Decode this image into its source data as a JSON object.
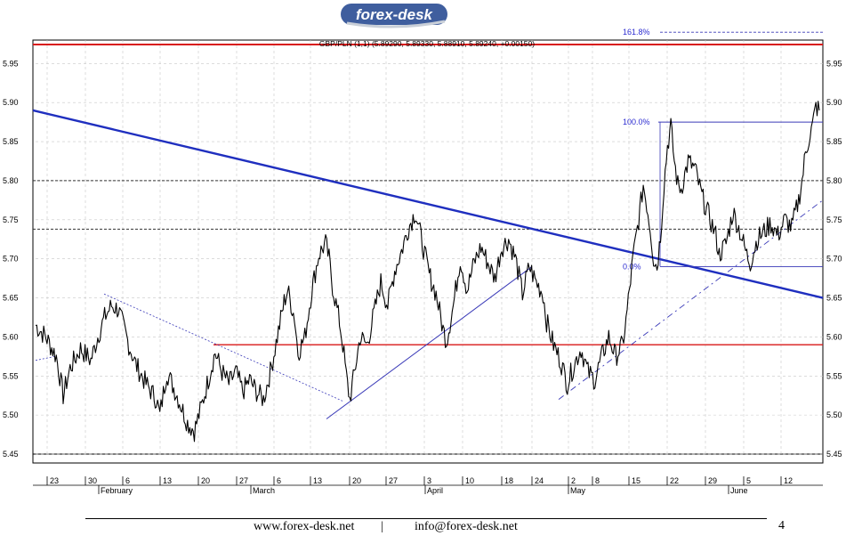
{
  "logo": {
    "text": "forex-desk"
  },
  "footer": {
    "website": "www.forex-desk.net",
    "separator": "|",
    "email": "info@forex-desk.net",
    "page_number": "4"
  },
  "chart_data": {
    "type": "line",
    "title": "GBP/PLN (1,1) (5.89290, 5.89330, 5.88910, 5.89240, +0.00150)",
    "ylim": [
      5.45,
      5.98
    ],
    "y_ticks": [
      "5.95",
      "5.90",
      "5.85",
      "5.80",
      "5.75",
      "5.70",
      "5.65",
      "5.60",
      "5.55",
      "5.50",
      "5.45"
    ],
    "x_day_labels": [
      "23",
      "30",
      "6",
      "13",
      "20",
      "27",
      "6",
      "13",
      "20",
      "27",
      "3",
      "10",
      "18",
      "24",
      "2",
      "8",
      "15",
      "22",
      "29",
      "5",
      "12"
    ],
    "x_month_labels": [
      "February",
      "March",
      "April",
      "May",
      "June"
    ],
    "grid": true,
    "colors": {
      "trendline": "#1f2fbf",
      "horizontal": "#d81818",
      "fib": "#3a3ab8",
      "price": "#000000"
    },
    "series": [
      {
        "values": [
          [
            0,
            5.615
          ],
          [
            3,
            5.6
          ],
          [
            6,
            5.575
          ],
          [
            8,
            5.525
          ],
          [
            10,
            5.56
          ],
          [
            13,
            5.585
          ],
          [
            16,
            5.57
          ],
          [
            18,
            5.6
          ],
          [
            20,
            5.625
          ],
          [
            22,
            5.64
          ],
          [
            24,
            5.635
          ],
          [
            27,
            5.59
          ],
          [
            29,
            5.565
          ],
          [
            32,
            5.54
          ],
          [
            35,
            5.52
          ],
          [
            36,
            5.5
          ],
          [
            38,
            5.555
          ],
          [
            41,
            5.525
          ],
          [
            44,
            5.49
          ],
          [
            46,
            5.48
          ],
          [
            48,
            5.51
          ],
          [
            50,
            5.545
          ],
          [
            52,
            5.58
          ],
          [
            54,
            5.555
          ],
          [
            56,
            5.54
          ],
          [
            58,
            5.555
          ],
          [
            60,
            5.53
          ],
          [
            62,
            5.545
          ],
          [
            64,
            5.53
          ],
          [
            66,
            5.52
          ],
          [
            68,
            5.555
          ],
          [
            70,
            5.6
          ],
          [
            72,
            5.645
          ],
          [
            73,
            5.66
          ],
          [
            75,
            5.625
          ],
          [
            76,
            5.58
          ],
          [
            78,
            5.6
          ],
          [
            80,
            5.66
          ],
          [
            82,
            5.705
          ],
          [
            84,
            5.72
          ],
          [
            85,
            5.7
          ],
          [
            86,
            5.665
          ],
          [
            88,
            5.62
          ],
          [
            89,
            5.59
          ],
          [
            90,
            5.55
          ],
          [
            91,
            5.52
          ],
          [
            92,
            5.545
          ],
          [
            94,
            5.6
          ],
          [
            96,
            5.59
          ],
          [
            98,
            5.63
          ],
          [
            100,
            5.67
          ],
          [
            102,
            5.64
          ],
          [
            104,
            5.685
          ],
          [
            106,
            5.71
          ],
          [
            108,
            5.74
          ],
          [
            110,
            5.76
          ],
          [
            112,
            5.72
          ],
          [
            114,
            5.68
          ],
          [
            116,
            5.655
          ],
          [
            118,
            5.61
          ],
          [
            119,
            5.595
          ],
          [
            121,
            5.64
          ],
          [
            123,
            5.7
          ],
          [
            125,
            5.66
          ],
          [
            127,
            5.695
          ],
          [
            129,
            5.715
          ],
          [
            131,
            5.695
          ],
          [
            133,
            5.675
          ],
          [
            135,
            5.715
          ],
          [
            137,
            5.725
          ],
          [
            139,
            5.7
          ],
          [
            141,
            5.655
          ],
          [
            143,
            5.69
          ],
          [
            145,
            5.67
          ],
          [
            147,
            5.655
          ],
          [
            148,
            5.62
          ],
          [
            150,
            5.59
          ],
          [
            152,
            5.57
          ],
          [
            154,
            5.54
          ],
          [
            156,
            5.565
          ],
          [
            158,
            5.585
          ],
          [
            160,
            5.555
          ],
          [
            162,
            5.545
          ],
          [
            164,
            5.575
          ],
          [
            166,
            5.6
          ],
          [
            168,
            5.575
          ],
          [
            170,
            5.59
          ],
          [
            171,
            5.62
          ],
          [
            172,
            5.66
          ],
          [
            173,
            5.7
          ],
          [
            174,
            5.73
          ],
          [
            175,
            5.76
          ],
          [
            176,
            5.795
          ],
          [
            177,
            5.77
          ],
          [
            178,
            5.74
          ],
          [
            179,
            5.7
          ],
          [
            180,
            5.69
          ],
          [
            181,
            5.73
          ],
          [
            182,
            5.795
          ],
          [
            183,
            5.845
          ],
          [
            184,
            5.87
          ],
          [
            185,
            5.825
          ],
          [
            186,
            5.795
          ],
          [
            187,
            5.79
          ],
          [
            189,
            5.825
          ],
          [
            191,
            5.815
          ],
          [
            193,
            5.78
          ],
          [
            195,
            5.755
          ],
          [
            197,
            5.73
          ],
          [
            198,
            5.705
          ],
          [
            200,
            5.72
          ],
          [
            202,
            5.76
          ],
          [
            204,
            5.735
          ],
          [
            206,
            5.705
          ],
          [
            207,
            5.695
          ],
          [
            209,
            5.725
          ],
          [
            211,
            5.735
          ],
          [
            213,
            5.745
          ],
          [
            215,
            5.73
          ],
          [
            217,
            5.75
          ],
          [
            219,
            5.74
          ],
          [
            221,
            5.775
          ],
          [
            222,
            5.8
          ],
          [
            223,
            5.835
          ],
          [
            224,
            5.855
          ],
          [
            225,
            5.87
          ],
          [
            226,
            5.895
          ],
          [
            227,
            5.89
          ]
        ]
      }
    ],
    "annotations": {
      "fib_levels": [
        {
          "label": "161.8%",
          "value": 5.99
        },
        {
          "label": "100.0%",
          "value": 5.875
        },
        {
          "label": "0.0%",
          "value": 5.69
        }
      ],
      "horizontal_lines": [
        5.8,
        5.738
      ],
      "support_line": 5.59
    }
  }
}
